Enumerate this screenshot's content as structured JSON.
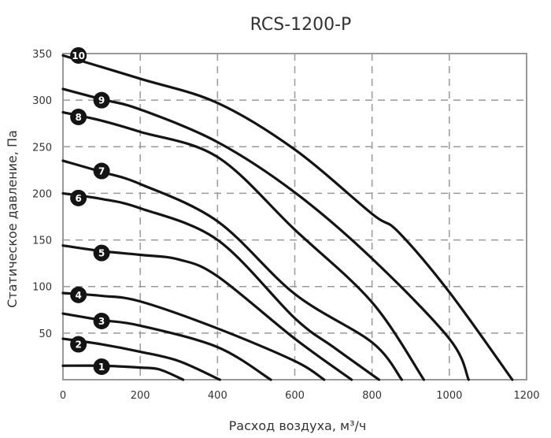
{
  "chart_data": {
    "type": "line",
    "title": "RCS-1200-P",
    "xlabel": "Расход воздуха, м³/ч",
    "ylabel": "Статическое давление, Па",
    "xlim": [
      0,
      1200
    ],
    "ylim": [
      0,
      350
    ],
    "xticks": [
      "0",
      "200",
      "400",
      "600",
      "800",
      "1000",
      "1200"
    ],
    "yticks": [
      "50",
      "100",
      "150",
      "200",
      "250",
      "300",
      "350"
    ],
    "grid": true,
    "line_color": "#141414",
    "grid_color": "#999999",
    "series": [
      {
        "name": "1",
        "label_at": [
          100,
          14
        ],
        "points": [
          [
            0,
            15
          ],
          [
            100,
            15
          ],
          [
            200,
            13
          ],
          [
            250,
            11
          ],
          [
            311,
            0
          ]
        ]
      },
      {
        "name": "2",
        "label_at": [
          40,
          38
        ],
        "points": [
          [
            0,
            44
          ],
          [
            100,
            38
          ],
          [
            200,
            30
          ],
          [
            300,
            20
          ],
          [
            406,
            0
          ]
        ]
      },
      {
        "name": "3",
        "label_at": [
          100,
          63
        ],
        "points": [
          [
            0,
            71
          ],
          [
            100,
            64
          ],
          [
            200,
            58
          ],
          [
            400,
            35
          ],
          [
            538,
            0
          ]
        ]
      },
      {
        "name": "4",
        "label_at": [
          40,
          91
        ],
        "points": [
          [
            0,
            93
          ],
          [
            100,
            90
          ],
          [
            200,
            84
          ],
          [
            400,
            55
          ],
          [
            600,
            20
          ],
          [
            676,
            0
          ]
        ]
      },
      {
        "name": "5",
        "label_at": [
          100,
          136
        ],
        "points": [
          [
            0,
            144
          ],
          [
            100,
            138
          ],
          [
            200,
            134
          ],
          [
            300,
            129
          ],
          [
            400,
            111
          ],
          [
            600,
            44
          ],
          [
            747,
            0
          ]
        ]
      },
      {
        "name": "6",
        "label_at": [
          40,
          195
        ],
        "points": [
          [
            0,
            200
          ],
          [
            100,
            194
          ],
          [
            200,
            184
          ],
          [
            400,
            150
          ],
          [
            600,
            66
          ],
          [
            700,
            35
          ],
          [
            818,
            0
          ]
        ]
      },
      {
        "name": "7",
        "label_at": [
          100,
          224
        ],
        "points": [
          [
            0,
            235
          ],
          [
            100,
            223
          ],
          [
            200,
            210
          ],
          [
            400,
            170
          ],
          [
            600,
            92
          ],
          [
            800,
            40
          ],
          [
            877,
            0
          ]
        ]
      },
      {
        "name": "8",
        "label_at": [
          40,
          282
        ],
        "points": [
          [
            0,
            287
          ],
          [
            100,
            278
          ],
          [
            200,
            266
          ],
          [
            400,
            239
          ],
          [
            600,
            161
          ],
          [
            800,
            83
          ],
          [
            934,
            0
          ]
        ]
      },
      {
        "name": "9",
        "label_at": [
          100,
          300
        ],
        "points": [
          [
            0,
            312
          ],
          [
            100,
            301
          ],
          [
            200,
            290
          ],
          [
            400,
            255
          ],
          [
            600,
            201
          ],
          [
            800,
            130
          ],
          [
            1000,
            44
          ],
          [
            1050,
            0
          ]
        ]
      },
      {
        "name": "10",
        "label_at": [
          40,
          348
        ],
        "points": [
          [
            0,
            348
          ],
          [
            200,
            323
          ],
          [
            400,
            297
          ],
          [
            600,
            247
          ],
          [
            800,
            178
          ],
          [
            867,
            159
          ],
          [
            1000,
            94
          ],
          [
            1163,
            0
          ]
        ]
      }
    ]
  }
}
